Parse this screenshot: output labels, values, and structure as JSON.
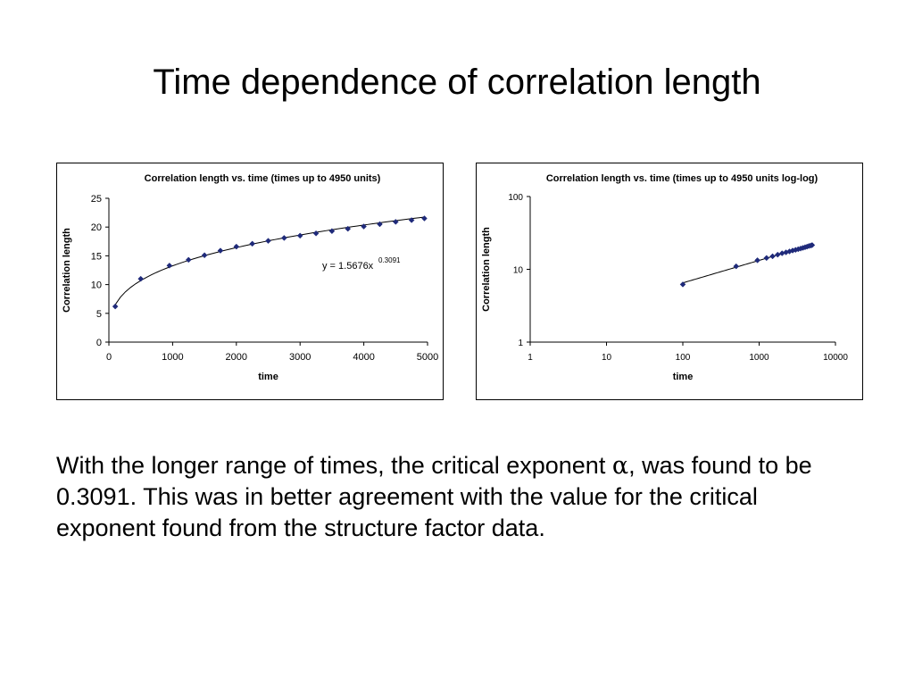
{
  "slide": {
    "title": "Time dependence of correlation length",
    "body_part1": "With the longer range of times, the critical exponent ",
    "alpha_symbol": "α",
    "body_part2": ", was found to be 0.3091.  This was in better agreement with the value for the critical exponent found from the structure factor data."
  },
  "chart_data": [
    {
      "type": "scatter",
      "title": "Correlation length vs. time (times up to 4950 units)",
      "xlabel": "time",
      "ylabel": "Correlation length",
      "xlim": [
        0,
        5000
      ],
      "ylim": [
        0,
        25
      ],
      "xticks": [
        "0",
        "1000",
        "2000",
        "3000",
        "4000",
        "5000"
      ],
      "yticks": [
        "0",
        "5",
        "10",
        "15",
        "20",
        "25"
      ],
      "grid": false,
      "marker_color": "#1f2a7a",
      "trendline": {
        "a": 1.5676,
        "b": 0.3091,
        "label": "y = 1.5676x",
        "exponent_label": "0.3091"
      },
      "x": [
        100,
        500,
        950,
        1250,
        1500,
        1750,
        2000,
        2250,
        2500,
        2750,
        3000,
        3250,
        3500,
        3750,
        4000,
        4250,
        4500,
        4750,
        4950
      ],
      "y": [
        6.2,
        11.0,
        13.3,
        14.3,
        15.1,
        15.9,
        16.6,
        17.1,
        17.6,
        18.1,
        18.5,
        18.9,
        19.3,
        19.7,
        20.1,
        20.5,
        20.9,
        21.2,
        21.5
      ]
    },
    {
      "type": "scatter",
      "title": "Correlation length vs. time (times up to 4950 units log-log)",
      "xlabel": "time",
      "ylabel": "Correlation length",
      "xscale": "log",
      "yscale": "log",
      "xlim": [
        1,
        10000
      ],
      "ylim": [
        1,
        100
      ],
      "xticks": [
        "1",
        "10",
        "100",
        "1000",
        "10000"
      ],
      "yticks": [
        "1",
        "10",
        "100"
      ],
      "grid": false,
      "marker_color": "#1f2a7a",
      "trendline": {
        "a": 1.5676,
        "b": 0.3091
      },
      "x": [
        100,
        500,
        950,
        1250,
        1500,
        1750,
        2000,
        2250,
        2500,
        2750,
        3000,
        3250,
        3500,
        3750,
        4000,
        4250,
        4500,
        4750,
        4950
      ],
      "y": [
        6.2,
        11.0,
        13.3,
        14.3,
        15.1,
        15.9,
        16.6,
        17.1,
        17.6,
        18.1,
        18.5,
        18.9,
        19.3,
        19.7,
        20.1,
        20.5,
        20.9,
        21.2,
        21.5
      ]
    }
  ]
}
